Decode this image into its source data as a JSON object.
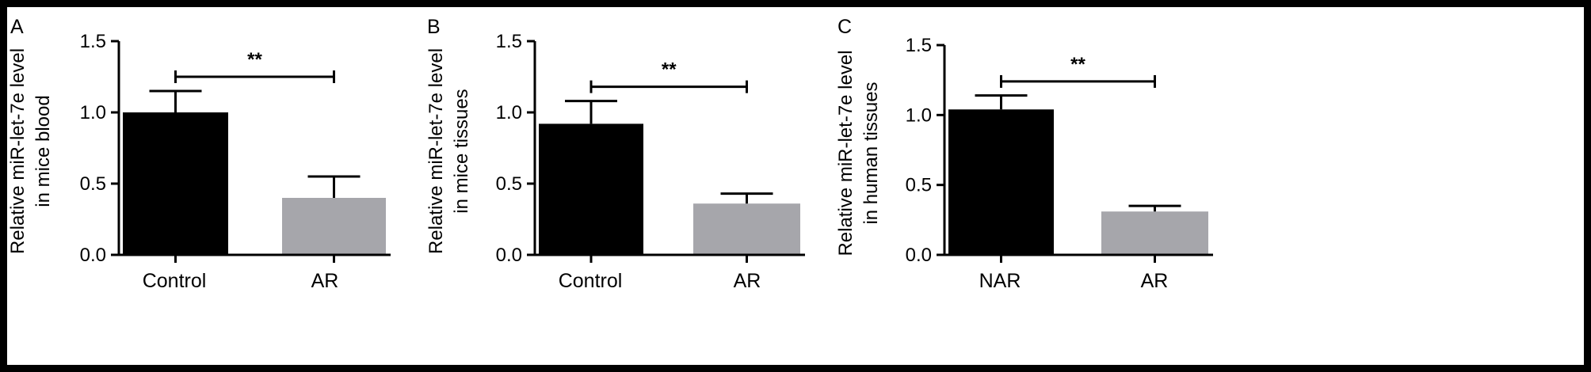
{
  "colors": {
    "control_bar": "#000000",
    "treatment_bar": "#a6a6ab",
    "axis": "#000000"
  },
  "chart_data": [
    {
      "type": "bar",
      "panel_label": "A",
      "ylabel_line1": "Relative miR-let-7e level",
      "ylabel_line2": "in mice blood",
      "categories": [
        "Control",
        "AR"
      ],
      "values": [
        1.0,
        0.4
      ],
      "errors": [
        0.15,
        0.15
      ],
      "ylim": [
        0,
        1.5
      ],
      "yticks": [
        "0.0",
        "0.5",
        "1.0",
        "1.5"
      ],
      "significance": {
        "label": "**",
        "y": 1.25
      }
    },
    {
      "type": "bar",
      "panel_label": "B",
      "ylabel_line1": "Relative miR-let-7e level",
      "ylabel_line2": "in mice tissues",
      "categories": [
        "Control",
        "AR"
      ],
      "values": [
        0.92,
        0.36
      ],
      "errors": [
        0.16,
        0.07
      ],
      "ylim": [
        0,
        1.5
      ],
      "yticks": [
        "0.0",
        "0.5",
        "1.0",
        "1.5"
      ],
      "significance": {
        "label": "**",
        "y": 1.18
      }
    },
    {
      "type": "bar",
      "panel_label": "C",
      "ylabel_line1": "Relative miR-let-7e level",
      "ylabel_line2": "in human tissues",
      "categories": [
        "NAR",
        "AR"
      ],
      "values": [
        1.04,
        0.31
      ],
      "errors": [
        0.1,
        0.04
      ],
      "ylim": [
        0,
        1.5
      ],
      "yticks": [
        "0.0",
        "0.5",
        "1.0",
        "1.5"
      ],
      "significance": {
        "label": "**",
        "y": 1.24
      }
    }
  ]
}
